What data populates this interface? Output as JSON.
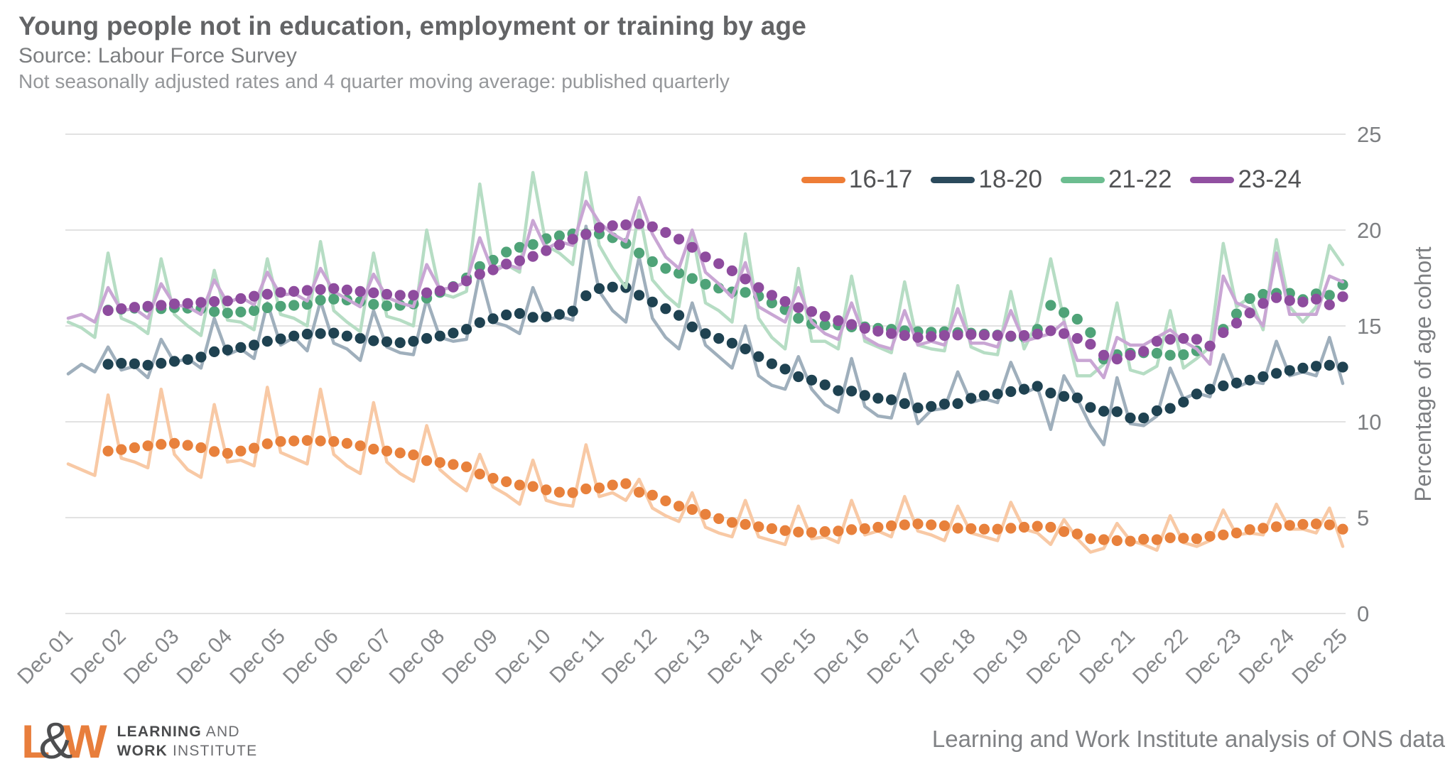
{
  "header": {
    "title": "Young people not in education, employment or training by age",
    "source_line": "Source: Labour Force Survey",
    "note_line": "Not seasonally adjusted rates and 4 quarter moving average: published quarterly"
  },
  "footer": {
    "logo": {
      "letter_l": "L",
      "ampersand": "&",
      "letter_w": "W",
      "line1_bold": "LEARNING",
      "line1_rest": " AND",
      "line2_bold": "WORK",
      "line2_rest": " INSTITUTE"
    },
    "attribution": "Learning and Work Institute analysis of ONS data"
  },
  "chart_data": {
    "type": "line",
    "title": "Young people not in education, employment or training by age",
    "ylabel": "Percentage of age cohort",
    "ylim": [
      0,
      25
    ],
    "yticks": [
      0,
      5,
      10,
      15,
      20,
      25
    ],
    "grid": "horizontal only, light gray",
    "legend_position": "inside top-right",
    "x_frequency": "quarterly, Dec 2001 to Dec 2025 (97 points), pale line = not seasonally adjusted rate, solid dots = 4-quarter trailing moving average starting Sep 2002",
    "x_tick_labels": [
      "Dec 01",
      "Dec 02",
      "Dec 03",
      "Dec 04",
      "Dec 05",
      "Dec 06",
      "Dec 07",
      "Dec 08",
      "Dec 09",
      "Dec 10",
      "Dec 11",
      "Dec 12",
      "Dec 13",
      "Dec 14",
      "Dec 15",
      "Dec 16",
      "Dec 17",
      "Dec 18",
      "Dec 19",
      "Dec 20",
      "Dec 21",
      "Dec 22",
      "Dec 23",
      "Dec 24",
      "Dec 25"
    ],
    "grid_color": "#e2e2e2",
    "axis_text_color": "#85878a",
    "series": [
      {
        "name": "16-17",
        "legend_color": "#ee7d36",
        "dot_color": "#e8813c",
        "line_color": "#f8c9a5",
        "values": [
          7.8,
          7.5,
          7.2,
          11.4,
          8.1,
          7.9,
          7.6,
          11.7,
          8.3,
          7.5,
          7.1,
          10.9,
          7.9,
          8.0,
          7.7,
          11.8,
          8.4,
          8.1,
          7.8,
          11.7,
          8.3,
          7.7,
          7.3,
          11.0,
          7.9,
          7.3,
          6.9,
          9.8,
          7.5,
          6.9,
          6.4,
          8.3,
          6.6,
          6.2,
          5.7,
          8.0,
          5.9,
          5.7,
          5.6,
          8.8,
          6.1,
          6.3,
          5.9,
          7.0,
          5.5,
          5.1,
          4.8,
          6.3,
          4.5,
          4.2,
          4.0,
          5.9,
          4.0,
          3.8,
          3.6,
          5.6,
          3.9,
          4.0,
          3.7,
          5.9,
          4.1,
          4.3,
          4.0,
          6.1,
          4.3,
          4.1,
          3.8,
          5.6,
          4.2,
          4.0,
          3.8,
          5.8,
          4.4,
          4.2,
          3.6,
          4.9,
          3.9,
          3.2,
          3.4,
          4.7,
          3.8,
          3.6,
          3.3,
          5.1,
          3.7,
          3.5,
          3.8,
          5.4,
          4.1,
          4.2,
          4.1,
          5.7,
          4.4,
          4.4,
          4.2,
          5.5,
          3.5
        ]
      },
      {
        "name": "18-20",
        "legend_color": "#2b4a5c",
        "dot_color": "#1f4251",
        "line_color": "#9fafbc",
        "values": [
          12.5,
          13.0,
          12.6,
          13.9,
          12.7,
          12.9,
          12.3,
          14.3,
          13.1,
          13.3,
          12.8,
          15.4,
          13.5,
          13.8,
          13.3,
          16.2,
          14.0,
          14.4,
          13.7,
          16.3,
          14.1,
          13.8,
          13.2,
          15.8,
          13.9,
          13.6,
          13.5,
          16.4,
          14.4,
          14.2,
          14.3,
          17.8,
          15.2,
          15.0,
          14.6,
          17.0,
          15.3,
          15.5,
          15.3,
          20.2,
          16.8,
          15.8,
          15.2,
          18.6,
          15.4,
          14.4,
          13.8,
          16.2,
          14.0,
          13.4,
          12.8,
          15.0,
          12.4,
          11.9,
          11.7,
          13.4,
          11.7,
          10.9,
          10.5,
          13.3,
          10.8,
          10.3,
          10.2,
          12.5,
          9.9,
          10.6,
          10.7,
          12.6,
          11.0,
          11.2,
          11.0,
          13.1,
          11.5,
          11.8,
          9.6,
          12.4,
          11.2,
          9.8,
          8.8,
          12.3,
          9.9,
          9.8,
          10.3,
          12.8,
          11.2,
          11.5,
          11.3,
          13.5,
          11.8,
          12.1,
          12.0,
          14.2,
          12.4,
          12.6,
          12.4,
          14.4,
          12.0
        ]
      },
      {
        "name": "21-22",
        "legend_color": "#6cbd90",
        "dot_color": "#4fa378",
        "line_color": "#b6ddc4",
        "values": [
          15.2,
          14.9,
          14.4,
          18.8,
          15.4,
          15.1,
          14.6,
          18.5,
          15.6,
          15.0,
          14.5,
          17.9,
          15.3,
          15.2,
          14.8,
          18.5,
          15.6,
          15.4,
          15.0,
          19.4,
          15.8,
          15.2,
          14.7,
          18.8,
          15.5,
          15.3,
          15.0,
          20.0,
          16.7,
          16.5,
          16.8,
          22.4,
          18.0,
          18.2,
          17.8,
          23.0,
          19.2,
          18.8,
          18.2,
          23.0,
          19.2,
          18.0,
          17.0,
          21.0,
          17.4,
          16.6,
          16.0,
          19.9,
          16.2,
          15.8,
          15.2,
          19.8,
          15.4,
          14.4,
          13.8,
          18.0,
          14.2,
          14.2,
          13.8,
          17.6,
          14.2,
          13.9,
          13.6,
          17.3,
          14.0,
          13.8,
          13.7,
          17.1,
          13.9,
          13.6,
          13.5,
          16.8,
          13.8,
          15.2,
          18.5,
          15.3,
          12.4,
          12.4,
          13.0,
          16.2,
          12.7,
          12.5,
          12.9,
          15.8,
          12.8,
          13.3,
          13.9,
          19.3,
          16.0,
          16.5,
          14.8,
          19.5,
          16.0,
          15.2,
          16.0,
          19.2,
          18.2
        ]
      },
      {
        "name": "23-24",
        "legend_color": "#9150a1",
        "dot_color": "#8e4c9e",
        "line_color": "#c9a6d4",
        "values": [
          15.4,
          15.6,
          15.2,
          17.0,
          15.8,
          15.9,
          15.4,
          17.2,
          16.1,
          16.0,
          15.6,
          17.4,
          16.2,
          16.5,
          16.1,
          17.8,
          16.6,
          16.7,
          16.3,
          18.0,
          16.8,
          16.4,
          16.0,
          17.7,
          16.5,
          16.2,
          16.0,
          18.2,
          16.9,
          17.0,
          17.3,
          19.6,
          17.8,
          18.2,
          18.0,
          20.5,
          19.0,
          19.4,
          19.2,
          21.5,
          20.4,
          19.8,
          19.4,
          21.7,
          19.8,
          18.6,
          18.0,
          20.0,
          17.8,
          17.2,
          16.5,
          18.3,
          16.0,
          15.6,
          15.2,
          17.0,
          15.2,
          14.6,
          14.3,
          16.2,
          14.4,
          14.0,
          13.8,
          15.8,
          14.0,
          14.2,
          14.0,
          15.9,
          14.1,
          14.1,
          13.9,
          15.8,
          14.2,
          14.4,
          14.6,
          15.2,
          13.2,
          13.2,
          12.3,
          14.4,
          14.0,
          14.0,
          14.4,
          14.8,
          14.2,
          13.8,
          13.0,
          17.6,
          16.2,
          15.9,
          15.0,
          18.8,
          15.6,
          15.6,
          15.6,
          17.6,
          17.3
        ]
      }
    ],
    "moving_average_rule": "dots = mean of current and previous 3 quarters, first dot at 4th data point"
  }
}
